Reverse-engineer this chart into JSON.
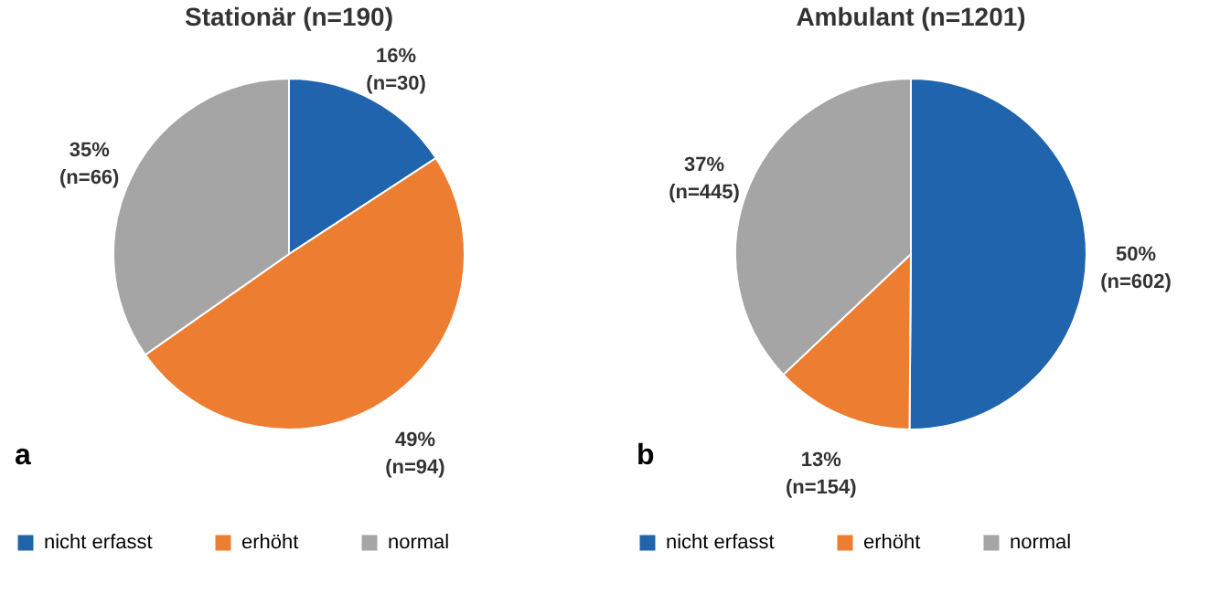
{
  "chart_data": [
    {
      "type": "pie",
      "title": "Stationär (n=190)",
      "categories": [
        "nicht erfasst",
        "erhöht",
        "normal"
      ],
      "values": [
        30,
        94,
        66
      ],
      "colors": [
        "#1f64ad",
        "#ed7d31",
        "#a5a5a5"
      ],
      "value_labels": [
        "16% (n=30)",
        "49% (n=94)",
        "35% (n=66)"
      ],
      "annotations": [
        "a"
      ],
      "legend": "bottom left"
    },
    {
      "type": "pie",
      "title": "Ambulant (n=1201)",
      "categories": [
        "nicht erfasst",
        "erhöht",
        "normal"
      ],
      "values": [
        602,
        154,
        445
      ],
      "colors": [
        "#1f64ad",
        "#ed7d31",
        "#a5a5a5"
      ],
      "value_labels": [
        "50% (n=602)",
        "13% (n=154)",
        "37% (n=445)"
      ],
      "annotations": [
        "b"
      ],
      "legend": "bottom left"
    }
  ]
}
